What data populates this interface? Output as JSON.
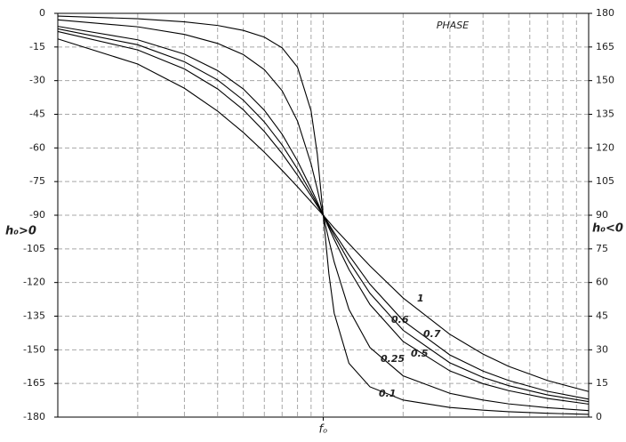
{
  "chart_data": {
    "type": "line",
    "title": "PHASE",
    "ylabel": "h₀>0",
    "y2label": "h₀<0",
    "x": [
      0.1,
      0.2,
      0.3,
      0.4,
      0.5,
      0.6,
      0.7,
      0.8,
      0.9,
      0.95,
      1,
      1.05,
      1.1,
      1.25,
      1.5,
      2,
      3,
      4,
      5,
      7,
      10
    ],
    "xlim": [
      0.1,
      10
    ],
    "xscale": "log",
    "xticks": [
      {
        "value": 1,
        "label": "fₒ"
      }
    ],
    "xgrid": [
      0.2,
      0.3,
      0.4,
      0.5,
      0.6,
      0.7,
      0.8,
      0.9,
      1,
      2,
      3,
      4,
      5,
      6,
      7,
      8,
      9
    ],
    "ylim": [
      -180,
      0
    ],
    "yticks": [
      0,
      -15,
      -30,
      -45,
      -60,
      -75,
      -90,
      -105,
      -120,
      -135,
      -150,
      -165,
      -180
    ],
    "y2lim": [
      0,
      180
    ],
    "y2ticks": [
      180,
      165,
      150,
      135,
      120,
      105,
      90,
      75,
      60,
      45,
      30,
      15,
      0
    ],
    "grid": true,
    "series": [
      {
        "name": "0.1",
        "color": "#000000",
        "values": [
          -1.2,
          -2.4,
          -3.8,
          -5.4,
          -7.6,
          -10.6,
          -15.4,
          -24.0,
          -43.5,
          -62.8,
          -90,
          -116.0,
          -133.7,
          -156.0,
          -166.5,
          -172.4,
          -175.7,
          -176.9,
          -177.6,
          -178.3,
          -178.8
        ]
      },
      {
        "name": "0.25",
        "color": "#000000",
        "values": [
          -2.9,
          -6.0,
          -9.4,
          -13.4,
          -18.4,
          -25.1,
          -34.5,
          -48.0,
          -67.1,
          -78.4,
          -90,
          -101.1,
          -110.9,
          -132.0,
          -149.0,
          -161.6,
          -169.4,
          -172.4,
          -174.1,
          -175.8,
          -177.1
        ]
      },
      {
        "name": "0.5",
        "color": "#000000",
        "values": [
          -5.8,
          -11.8,
          -18.2,
          -25.5,
          -33.7,
          -43.2,
          -53.9,
          -65.8,
          -78.1,
          -84.1,
          -90,
          -95.6,
          -100.8,
          -114.2,
          -129.8,
          -146.3,
          -159.4,
          -165.1,
          -168.2,
          -171.7,
          -174.2
        ]
      },
      {
        "name": "0.6",
        "color": "#000000",
        "values": [
          -6.9,
          -14.0,
          -21.6,
          -29.7,
          -38.7,
          -48.4,
          -58.7,
          -69.4,
          -80.0,
          -85.1,
          -90,
          -94.7,
          -99.0,
          -110.6,
          -124.8,
          -141.3,
          -155.8,
          -162.3,
          -166.0,
          -170.1,
          -173.1
        ]
      },
      {
        "name": "0.7",
        "color": "#000000",
        "values": [
          -8.1,
          -16.3,
          -24.8,
          -33.7,
          -43.0,
          -52.7,
          -62.5,
          -72.2,
          -81.4,
          -85.8,
          -90,
          -94.0,
          -97.8,
          -107.8,
          -120.8,
          -137.0,
          -152.3,
          -159.5,
          -163.7,
          -168.5,
          -172.0
        ]
      },
      {
        "name": "1",
        "color": "#000000",
        "values": [
          -11.4,
          -22.6,
          -33.4,
          -43.6,
          -53.1,
          -61.9,
          -70.0,
          -77.3,
          -84.0,
          -87.1,
          -90,
          -92.9,
          -95.7,
          -102.7,
          -112.6,
          -126.9,
          -143.1,
          -151.9,
          -157.4,
          -163.7,
          -168.6
        ]
      }
    ]
  }
}
